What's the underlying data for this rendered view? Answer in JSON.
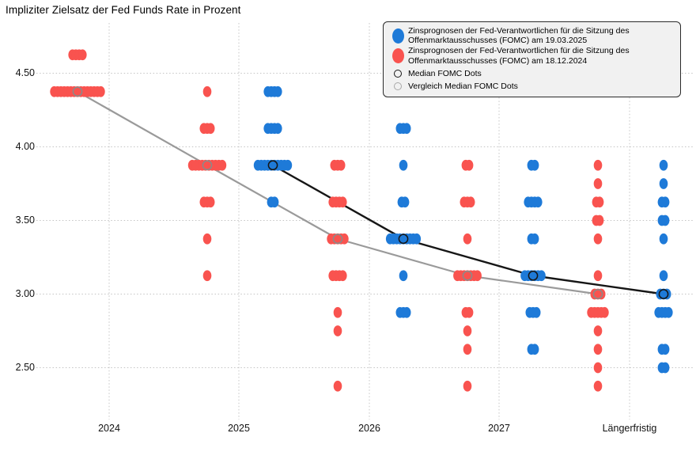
{
  "title": "Impliziter Zielsatz der Fed Funds Rate in Prozent",
  "chart_data": {
    "type": "scatter",
    "subtype": "fomc-dot-plot",
    "title": "Impliziter Zielsatz der Fed Funds Rate in Prozent",
    "xlabel": "",
    "ylabel": "",
    "x_categories": [
      "2024",
      "2025",
      "2026",
      "2027",
      "Längerfristig"
    ],
    "y_tick_labels": [
      "4.50",
      "4.00",
      "3.50",
      "3.00",
      "2.50"
    ],
    "y_tick_values": [
      4.5,
      4.0,
      3.5,
      3.0,
      2.5
    ],
    "ylim": [
      2.15,
      4.85
    ],
    "grid": "dotted",
    "legend_position": "top-right",
    "colors": {
      "blue_series": "#1e7ad8",
      "red_series": "#f9534f",
      "median_line": "#161616",
      "compare_median_line": "#9a9a9a",
      "gridline": "#c4c4c4",
      "legend_background": "#f1f1f1"
    },
    "series": [
      {
        "name": "Zinsprognosen der Fed-Verantwortlichen für die Sitzung des\nOffenmarktausschusses (FOMC) am 19.03.2025",
        "type": "dots",
        "color": "#1e7ad8",
        "side": "right",
        "clusters": [
          {
            "category": "2025",
            "value": 4.375,
            "count": 4
          },
          {
            "category": "2025",
            "value": 4.125,
            "count": 4
          },
          {
            "category": "2025",
            "value": 3.875,
            "count": 10
          },
          {
            "category": "2025",
            "value": 3.625,
            "count": 2
          },
          {
            "category": "2026",
            "value": 4.125,
            "count": 3
          },
          {
            "category": "2026",
            "value": 3.875,
            "count": 1
          },
          {
            "category": "2026",
            "value": 3.625,
            "count": 2
          },
          {
            "category": "2026",
            "value": 3.375,
            "count": 9
          },
          {
            "category": "2026",
            "value": 3.125,
            "count": 1
          },
          {
            "category": "2026",
            "value": 2.875,
            "count": 3
          },
          {
            "category": "2027",
            "value": 3.875,
            "count": 2
          },
          {
            "category": "2027",
            "value": 3.625,
            "count": 4
          },
          {
            "category": "2027",
            "value": 3.375,
            "count": 2
          },
          {
            "category": "2027",
            "value": 3.125,
            "count": 6
          },
          {
            "category": "2027",
            "value": 2.875,
            "count": 3
          },
          {
            "category": "2027",
            "value": 2.625,
            "count": 2
          },
          {
            "category": "Längerfristig",
            "value": 3.875,
            "count": 1
          },
          {
            "category": "Längerfristig",
            "value": 3.75,
            "count": 1
          },
          {
            "category": "Längerfristig",
            "value": 3.625,
            "count": 2
          },
          {
            "category": "Längerfristig",
            "value": 3.5,
            "count": 2
          },
          {
            "category": "Längerfristig",
            "value": 3.375,
            "count": 1
          },
          {
            "category": "Längerfristig",
            "value": 3.125,
            "count": 1
          },
          {
            "category": "Längerfristig",
            "value": 3.0,
            "count": 3
          },
          {
            "category": "Längerfristig",
            "value": 2.875,
            "count": 4
          },
          {
            "category": "Längerfristig",
            "value": 2.625,
            "count": 2
          },
          {
            "category": "Längerfristig",
            "value": 2.5,
            "count": 2
          }
        ]
      },
      {
        "name": "Zinsprognosen der Fed-Verantwortlichen für die Sitzung des\nOffenmarktausschusses (FOMC) am 18.12.2024",
        "type": "dots",
        "color": "#f9534f",
        "side": "left",
        "clusters": [
          {
            "category": "2024",
            "value": 4.625,
            "count": 4
          },
          {
            "category": "2024",
            "value": 4.375,
            "count": 15
          },
          {
            "category": "2025",
            "value": 4.375,
            "count": 1
          },
          {
            "category": "2025",
            "value": 4.125,
            "count": 3
          },
          {
            "category": "2025",
            "value": 3.875,
            "count": 10
          },
          {
            "category": "2025",
            "value": 3.625,
            "count": 3
          },
          {
            "category": "2025",
            "value": 3.375,
            "count": 1
          },
          {
            "category": "2025",
            "value": 3.125,
            "count": 1
          },
          {
            "category": "2026",
            "value": 3.875,
            "count": 3
          },
          {
            "category": "2026",
            "value": 3.625,
            "count": 4
          },
          {
            "category": "2026",
            "value": 3.375,
            "count": 5
          },
          {
            "category": "2026",
            "value": 3.125,
            "count": 4
          },
          {
            "category": "2026",
            "value": 2.875,
            "count": 1
          },
          {
            "category": "2026",
            "value": 2.75,
            "count": 1
          },
          {
            "category": "2026",
            "value": 2.375,
            "count": 1
          },
          {
            "category": "2027",
            "value": 3.875,
            "count": 2
          },
          {
            "category": "2027",
            "value": 3.625,
            "count": 3
          },
          {
            "category": "2027",
            "value": 3.375,
            "count": 1
          },
          {
            "category": "2027",
            "value": 3.125,
            "count": 7
          },
          {
            "category": "2027",
            "value": 2.875,
            "count": 2
          },
          {
            "category": "2027",
            "value": 2.75,
            "count": 1
          },
          {
            "category": "2027",
            "value": 2.625,
            "count": 1
          },
          {
            "category": "2027",
            "value": 2.375,
            "count": 1
          },
          {
            "category": "Längerfristig",
            "value": 3.875,
            "count": 1
          },
          {
            "category": "Längerfristig",
            "value": 3.75,
            "count": 1
          },
          {
            "category": "Längerfristig",
            "value": 3.625,
            "count": 2
          },
          {
            "category": "Längerfristig",
            "value": 3.5,
            "count": 2
          },
          {
            "category": "Längerfristig",
            "value": 3.375,
            "count": 1
          },
          {
            "category": "Längerfristig",
            "value": 3.125,
            "count": 1
          },
          {
            "category": "Längerfristig",
            "value": 3.0,
            "count": 3
          },
          {
            "category": "Längerfristig",
            "value": 2.875,
            "count": 5
          },
          {
            "category": "Längerfristig",
            "value": 2.75,
            "count": 1
          },
          {
            "category": "Längerfristig",
            "value": 2.625,
            "count": 1
          },
          {
            "category": "Längerfristig",
            "value": 2.5,
            "count": 1
          },
          {
            "category": "Längerfristig",
            "value": 2.375,
            "count": 1
          }
        ]
      },
      {
        "name": "Median FOMC Dots",
        "type": "median-line",
        "color": "#161616",
        "side": "right",
        "points": [
          {
            "category": "2025",
            "value": 3.875
          },
          {
            "category": "2026",
            "value": 3.375
          },
          {
            "category": "2027",
            "value": 3.125
          },
          {
            "category": "Längerfristig",
            "value": 3.0
          }
        ]
      },
      {
        "name": "Vergleich Median FOMC Dots",
        "type": "median-line",
        "color": "#9a9a9a",
        "side": "left",
        "points": [
          {
            "category": "2024",
            "value": 4.375
          },
          {
            "category": "2025",
            "value": 3.875
          },
          {
            "category": "2026",
            "value": 3.375
          },
          {
            "category": "2027",
            "value": 3.125
          },
          {
            "category": "Längerfristig",
            "value": 3.0
          }
        ]
      }
    ]
  }
}
